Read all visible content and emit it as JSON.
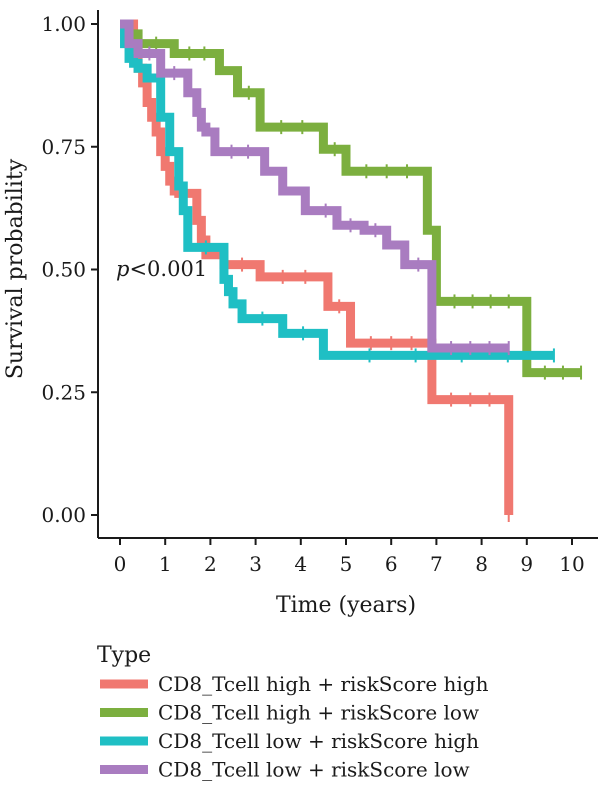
{
  "chart_data": {
    "type": "line",
    "step": true,
    "xlabel": "Time (years)",
    "ylabel": "Survival probability",
    "xlim": [
      -0.5,
      10.6
    ],
    "ylim": [
      0,
      1.05
    ],
    "x_ticks": [
      "0",
      "1",
      "2",
      "3",
      "4",
      "5",
      "6",
      "7",
      "8",
      "9",
      "10"
    ],
    "y_ticks": [
      "0.00",
      "0.25",
      "0.50",
      "0.75",
      "1.00"
    ],
    "annotation": "p<0.001",
    "legend_title": "Type",
    "legend_position": "bottom",
    "grid": false,
    "series": [
      {
        "name": "CD8_Tcell high + riskScore high",
        "color": "#F07870",
        "x": [
          0,
          0.3,
          0.4,
          0.5,
          0.6,
          0.7,
          0.8,
          0.9,
          1.0,
          1.1,
          1.2,
          1.3,
          1.7,
          1.8,
          1.9,
          2.3,
          3.1,
          4.6,
          5.1,
          6.9,
          8.6
        ],
        "y": [
          1.0,
          0.95,
          0.91,
          0.88,
          0.84,
          0.81,
          0.78,
          0.74,
          0.71,
          0.68,
          0.66,
          0.655,
          0.6,
          0.56,
          0.53,
          0.51,
          0.485,
          0.425,
          0.35,
          0.235,
          0.0
        ]
      },
      {
        "name": "CD8_Tcell high + riskScore low",
        "color": "#7CAF3F",
        "x": [
          0,
          0.2,
          0.4,
          1.2,
          2.2,
          2.6,
          3.1,
          4.5,
          5.0,
          6.8,
          7.0,
          9.0,
          10.2
        ],
        "y": [
          1.0,
          0.98,
          0.96,
          0.94,
          0.905,
          0.86,
          0.79,
          0.745,
          0.7,
          0.58,
          0.435,
          0.29,
          0.29
        ]
      },
      {
        "name": "CD8_Tcell low + riskScore high",
        "color": "#1FBFC4",
        "x": [
          0,
          0.1,
          0.2,
          0.3,
          0.4,
          0.6,
          0.9,
          1.1,
          1.3,
          1.4,
          1.5,
          2.3,
          2.4,
          2.5,
          2.7,
          3.6,
          4.5,
          9.6
        ],
        "y": [
          1.0,
          0.96,
          0.93,
          0.92,
          0.91,
          0.89,
          0.81,
          0.74,
          0.67,
          0.62,
          0.545,
          0.48,
          0.455,
          0.43,
          0.4,
          0.37,
          0.325,
          0.325
        ]
      },
      {
        "name": "CD8_Tcell low + riskScore low",
        "color": "#A97CC0",
        "x": [
          0,
          0.2,
          0.4,
          0.9,
          1.5,
          1.7,
          1.8,
          1.9,
          2.1,
          3.2,
          3.6,
          4.1,
          4.3,
          4.8,
          5.4,
          5.9,
          6.3,
          6.9,
          8.6
        ],
        "y": [
          1.0,
          0.96,
          0.94,
          0.9,
          0.86,
          0.82,
          0.79,
          0.78,
          0.74,
          0.7,
          0.66,
          0.62,
          0.62,
          0.59,
          0.58,
          0.55,
          0.51,
          0.34,
          0.34
        ]
      }
    ]
  }
}
